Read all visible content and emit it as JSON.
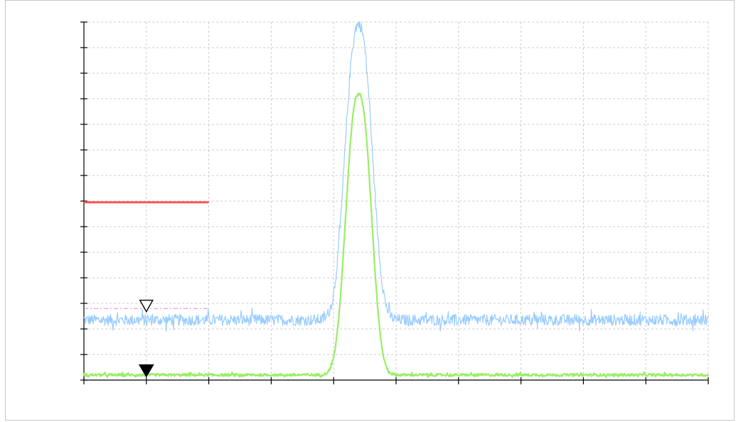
{
  "chart_data": {
    "type": "line",
    "title": "",
    "xlabel": "",
    "ylabel": "",
    "xlim": [
      0,
      10
    ],
    "ylim": [
      0,
      14
    ],
    "grid": true,
    "legend": "none",
    "x_ticks": [
      0,
      1,
      2,
      3,
      4,
      5,
      6,
      7,
      8,
      9,
      10
    ],
    "y_ticks": [
      0,
      1,
      2,
      3,
      4,
      5,
      6,
      7,
      8,
      9,
      10,
      11,
      12,
      13,
      14
    ],
    "series": [
      {
        "color": "#99ccff",
        "baseline": 2.35,
        "noise": 0.22,
        "peak_center": 4.4,
        "peak_height": 11.55,
        "peak_width": 0.34
      },
      {
        "color": "#99ee66",
        "baseline": 0.2,
        "noise": 0.05,
        "peak_center": 4.4,
        "peak_height": 11.0,
        "peak_width": 0.32
      }
    ],
    "annotations": {
      "reference_line": {
        "color": "#ff5555",
        "x": [
          0,
          2
        ],
        "y": 6.95
      },
      "dashed_level": {
        "color": "#dd88dd",
        "x": [
          0,
          2
        ],
        "y": 2.8
      },
      "marker_open": {
        "x": 1.0,
        "y": 2.9
      },
      "marker_filled": {
        "x": 1.0,
        "y": 0.35
      }
    }
  }
}
